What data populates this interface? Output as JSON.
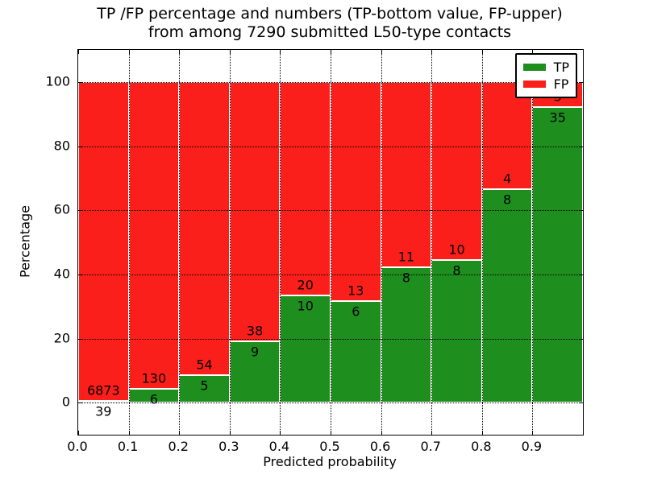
{
  "figure": {
    "title_line1": "TP /FP percentage and numbers (TP-bottom value, FP-upper)",
    "title_line2": "from among 7290 submitted L50-type contacts",
    "xlabel": "Predicted probability",
    "ylabel": "Percentage"
  },
  "legend": {
    "items": [
      {
        "label": "TP",
        "color": "#1e8f1e"
      },
      {
        "label": "FP",
        "color": "#fa1f1a"
      }
    ]
  },
  "chart_data": {
    "type": "bar",
    "stacked": true,
    "normalized_to_percent": true,
    "title": "TP /FP percentage and numbers (TP-bottom value, FP-upper) from among 7290 submitted L50-type contacts",
    "xlabel": "Predicted probability",
    "ylabel": "Percentage",
    "total_contacts": 7290,
    "bin_width": 0.1,
    "bin_starts": [
      0.0,
      0.1,
      0.2,
      0.3,
      0.4,
      0.5,
      0.6,
      0.7,
      0.8,
      0.9
    ],
    "xticks": [
      "0.0",
      "0.1",
      "0.2",
      "0.3",
      "0.4",
      "0.5",
      "0.6",
      "0.7",
      "0.8",
      "0.9"
    ],
    "yticks": [
      0,
      20,
      40,
      60,
      80,
      100
    ],
    "xlim": [
      0.0,
      1.0
    ],
    "ylim": [
      -10,
      110
    ],
    "grid": true,
    "legend_position": "upper right",
    "series": [
      {
        "name": "TP",
        "color": "#1e8f1e",
        "counts": [
          39,
          6,
          5,
          9,
          10,
          6,
          8,
          8,
          8,
          35
        ]
      },
      {
        "name": "FP",
        "color": "#fa1f1a",
        "counts": [
          6873,
          130,
          54,
          38,
          20,
          13,
          11,
          10,
          4,
          3
        ]
      }
    ],
    "tp_percent_per_bin": [
      0.56,
      4.41,
      8.47,
      19.15,
      33.33,
      31.58,
      42.11,
      44.44,
      66.67,
      92.11
    ],
    "fp_percent_per_bin": [
      99.44,
      95.59,
      91.53,
      80.85,
      66.67,
      68.42,
      57.89,
      55.56,
      33.33,
      7.89
    ]
  }
}
